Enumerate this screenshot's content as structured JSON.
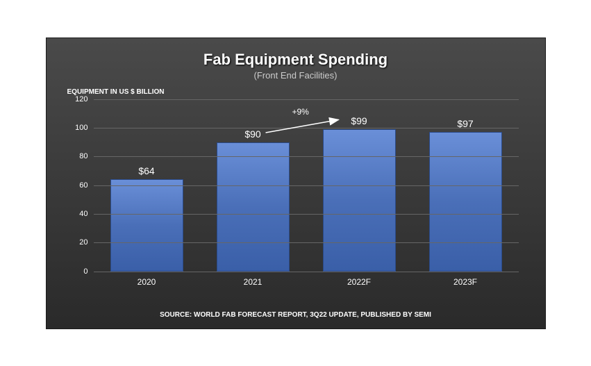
{
  "title": "Fab Equipment Spending",
  "subtitle": "(Front End Facilities)",
  "y_axis_title": "EQUIPMENT IN US $ BILLION",
  "source": "SOURCE: WORLD FAB FORECAST REPORT, 3Q22 UPDATE, PUBLISHED BY SEMI",
  "chart": {
    "type": "bar",
    "categories": [
      "2020",
      "2021",
      "2022F",
      "2023F"
    ],
    "values": [
      64,
      90,
      99,
      97
    ],
    "value_labels": [
      "$64",
      "$90",
      "$99",
      "$97"
    ],
    "bar_gradient_top": "#6a8fd8",
    "bar_gradient_mid": "#4a6fb8",
    "bar_gradient_bottom": "#3a5fa8",
    "bar_border": "#2a4a88",
    "ylim": [
      0,
      120
    ],
    "ytick_step": 20,
    "yticks": [
      0,
      20,
      40,
      60,
      80,
      100,
      120
    ],
    "grid_color": "#666666",
    "background_gradient_top": "#4a4a4a",
    "background_gradient_bottom": "#2a2a2a",
    "text_color": "#ffffff",
    "subtitle_color": "#cccccc",
    "title_fontsize": 22,
    "subtitle_fontsize": 13,
    "axis_label_fontsize": 11,
    "value_label_fontsize": 14,
    "annotation": {
      "label": "+9%",
      "from_bar_index": 1,
      "to_bar_index": 2
    }
  }
}
